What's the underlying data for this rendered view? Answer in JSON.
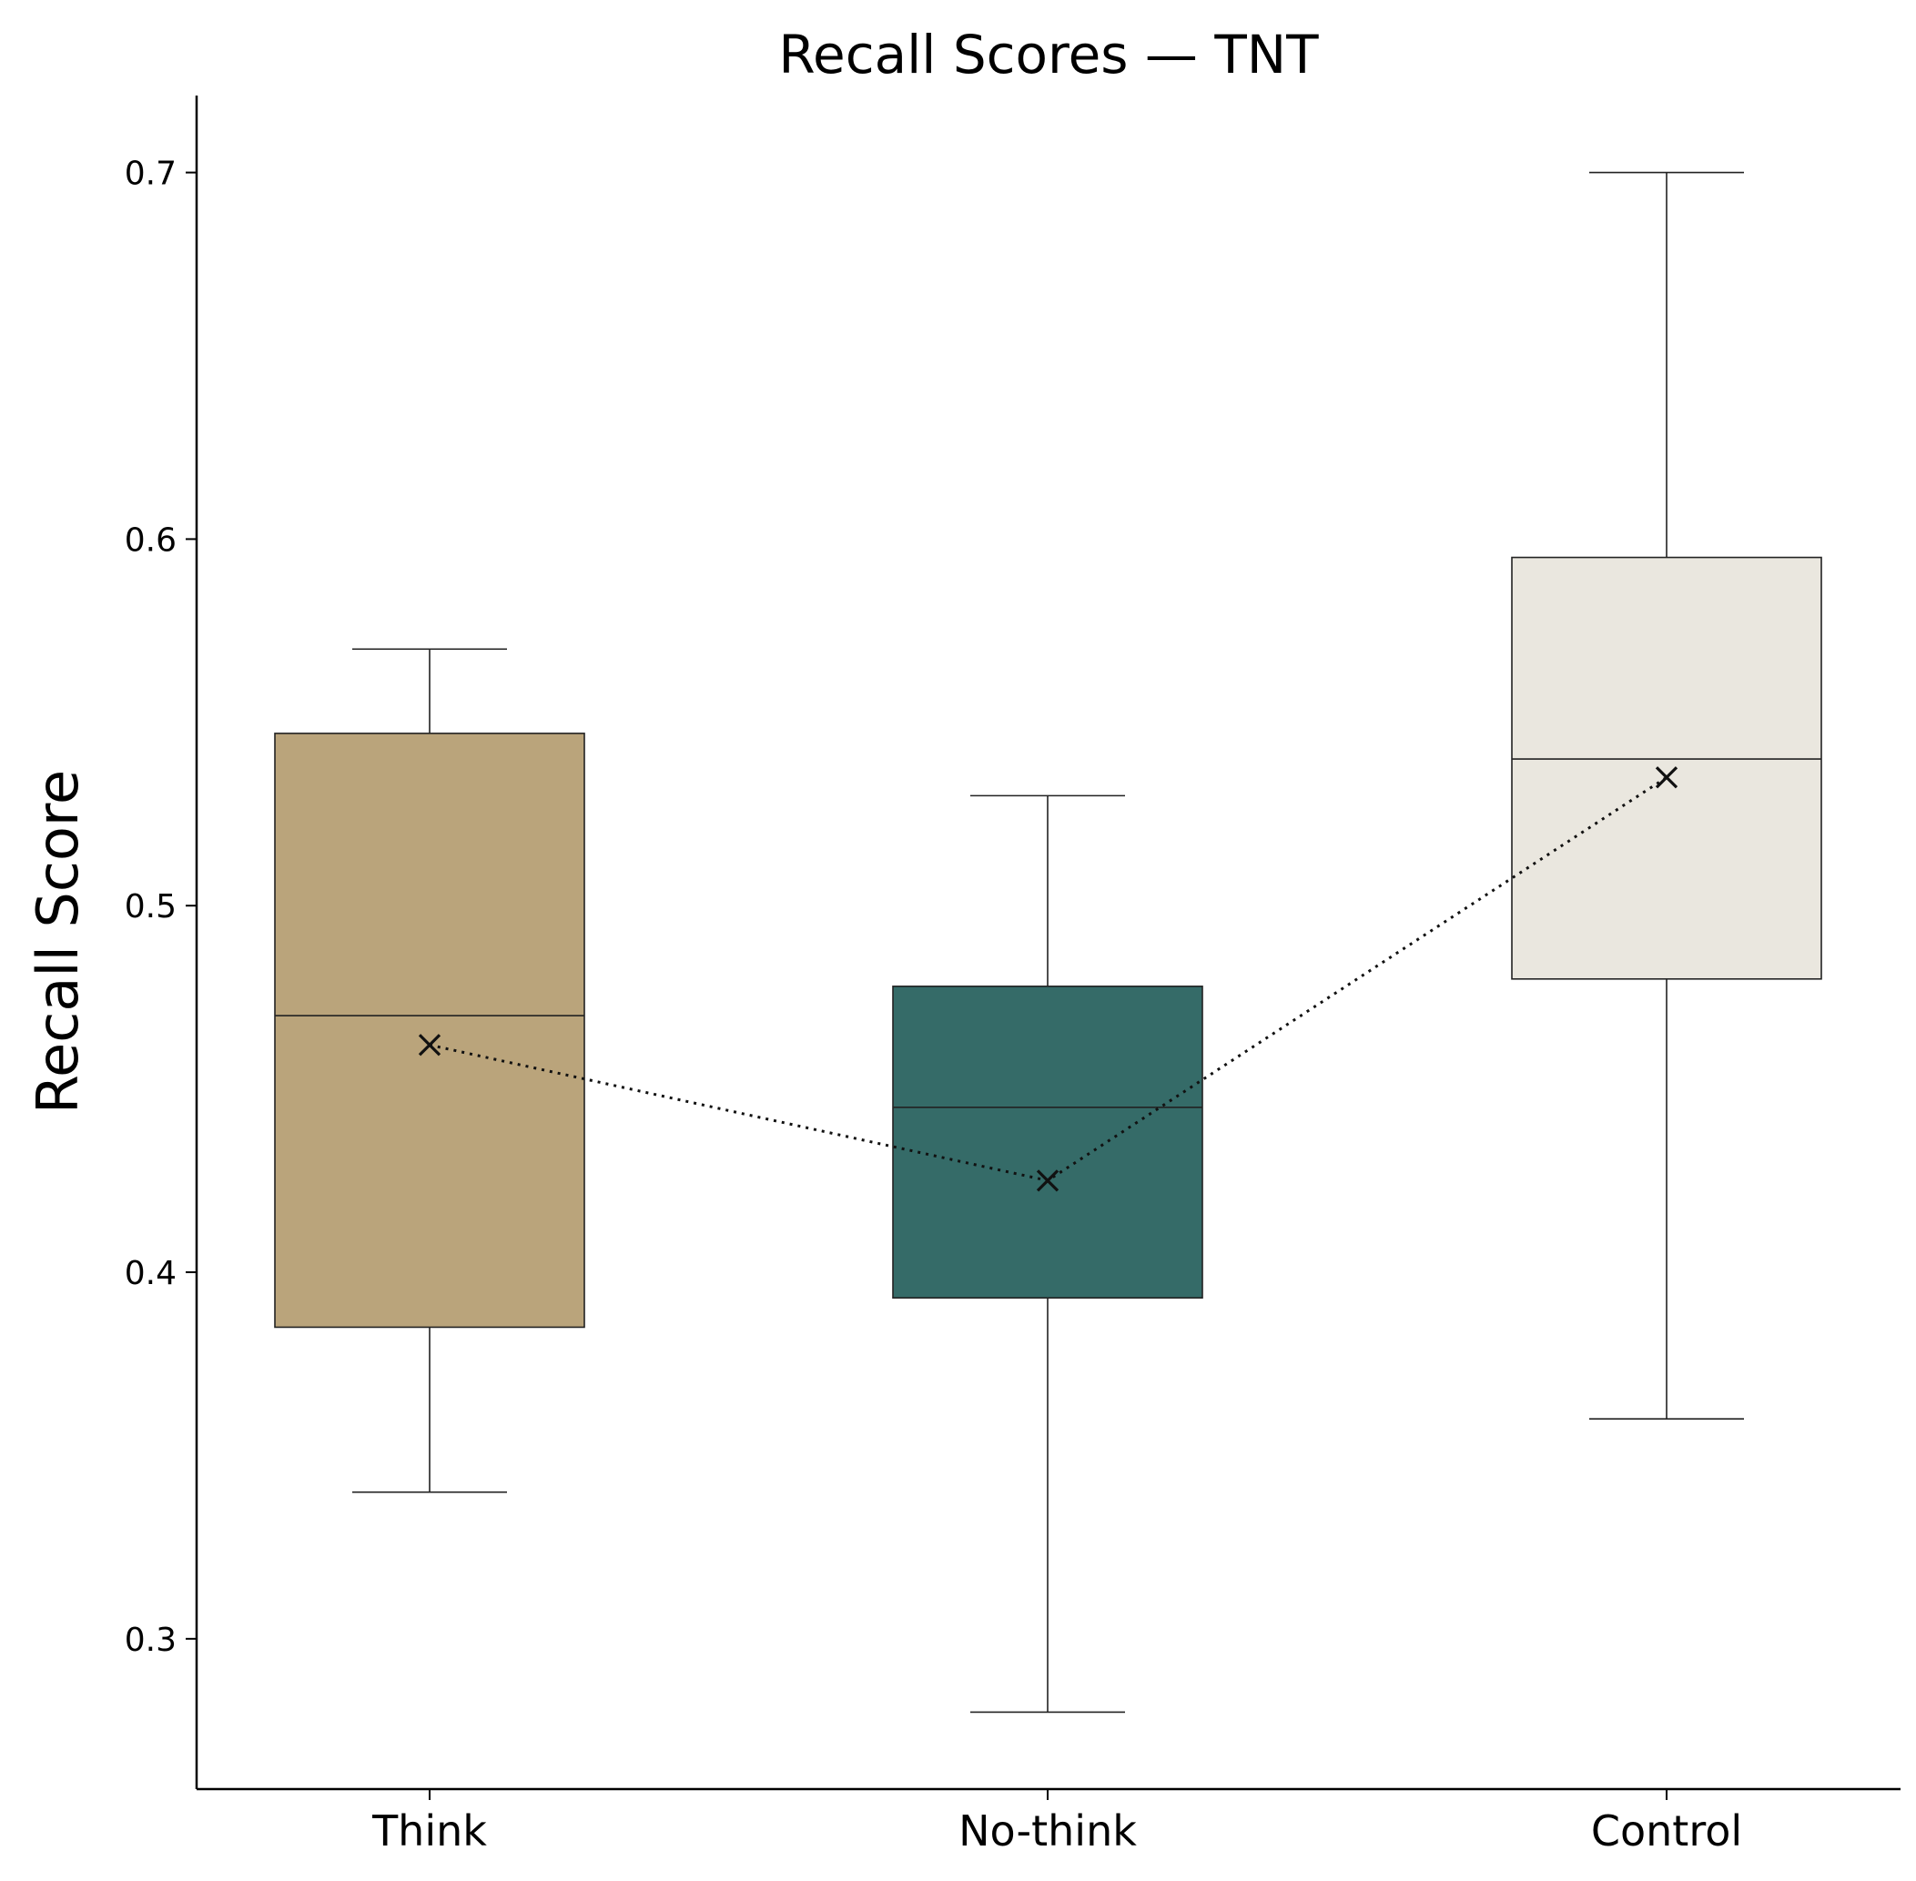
{
  "chart_data": {
    "type": "box",
    "title": "Recall Scores — TNT",
    "xlabel": "",
    "ylabel": "Recall Score",
    "ylim": [
      0.259,
      0.721
    ],
    "yticks": [
      0.3,
      0.4,
      0.5,
      0.6,
      0.7
    ],
    "ytick_labels": [
      "0.3",
      "0.4",
      "0.5",
      "0.6",
      "0.7"
    ],
    "grid": false,
    "categories": [
      "Think",
      "No-think",
      "Control"
    ],
    "boxes": [
      {
        "category": "Think",
        "whisker_low": 0.34,
        "q1": 0.385,
        "median": 0.47,
        "q3": 0.547,
        "whisker_high": 0.57,
        "mean": 0.462,
        "color": "#baa47b"
      },
      {
        "category": "No-think",
        "whisker_low": 0.28,
        "q1": 0.393,
        "median": 0.445,
        "q3": 0.478,
        "whisker_high": 0.53,
        "mean": 0.425,
        "color": "#356b68"
      },
      {
        "category": "Control",
        "whisker_low": 0.36,
        "q1": 0.48,
        "median": 0.54,
        "q3": 0.595,
        "whisker_high": 0.7,
        "mean": 0.535,
        "color": "#eae7df"
      }
    ],
    "mean_line": {
      "style": "dotted",
      "marker": "x",
      "color": "#111111"
    }
  }
}
